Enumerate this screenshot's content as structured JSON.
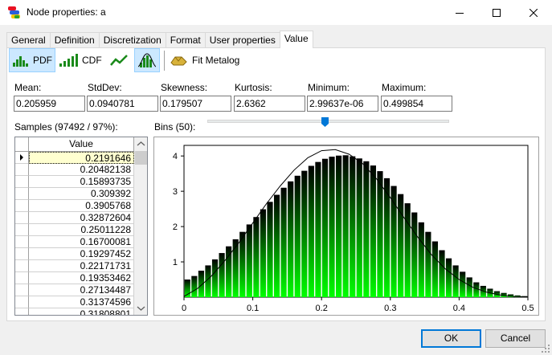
{
  "window": {
    "title": "Node properties: a",
    "colors": {
      "titlebar": "#ffffff",
      "face": "#f0f0f0"
    }
  },
  "tabs": [
    {
      "label": "General"
    },
    {
      "label": "Definition"
    },
    {
      "label": "Discretization"
    },
    {
      "label": "Format"
    },
    {
      "label": "User properties"
    },
    {
      "label": "Value",
      "active": true
    }
  ],
  "toolbar": {
    "pdf_label": "PDF",
    "cdf_label": "CDF",
    "fit_label": "Fit Metalog"
  },
  "stats": {
    "mean_label": "Mean:",
    "mean": "0.205959",
    "stddev_label": "StdDev:",
    "stddev": "0.0940781",
    "skewness_label": "Skewness:",
    "skewness": "0.179507",
    "kurtosis_label": "Kurtosis:",
    "kurtosis": "2.6362",
    "minimum_label": "Minimum:",
    "minimum": "2.99637e-06",
    "maximum_label": "Maximum:",
    "maximum": "0.499854"
  },
  "samples": {
    "label": "Samples (97492 / 97%):",
    "column": "Value",
    "values": [
      "0.2191646",
      "0.20482138",
      "0.15893735",
      "0.309392",
      "0.3905768",
      "0.32872604",
      "0.25011228",
      "0.16700081",
      "0.19297452",
      "0.22171731",
      "0.19353462",
      "0.27134487",
      "0.31374596",
      "0.31808801"
    ]
  },
  "bins": {
    "label": "Bins (50):",
    "count": 50,
    "slider_fraction": 0.48
  },
  "chart_data": {
    "type": "bar",
    "x_ticks": [
      "0",
      "0.1",
      "0.2",
      "0.3",
      "0.4",
      "0.5"
    ],
    "y_ticks": [
      "1",
      "2",
      "3",
      "4"
    ],
    "xlim": [
      0,
      0.5
    ],
    "ylim": [
      0,
      4.3
    ],
    "bin_width": 0.01,
    "values": [
      0.5,
      0.6,
      0.75,
      0.9,
      1.07,
      1.25,
      1.44,
      1.64,
      1.85,
      2.06,
      2.27,
      2.49,
      2.7,
      2.9,
      3.1,
      3.28,
      3.44,
      3.58,
      3.72,
      3.83,
      3.92,
      3.98,
      4.01,
      4.02,
      3.99,
      3.93,
      3.85,
      3.73,
      3.57,
      3.37,
      3.15,
      2.92,
      2.66,
      2.4,
      2.12,
      1.85,
      1.58,
      1.33,
      1.1,
      0.9,
      0.72,
      0.56,
      0.42,
      0.32,
      0.24,
      0.17,
      0.12,
      0.08,
      0.05,
      0.03
    ],
    "density_curve": [
      [
        0,
        0.02
      ],
      [
        0.02,
        0.25
      ],
      [
        0.04,
        0.6
      ],
      [
        0.06,
        1.05
      ],
      [
        0.08,
        1.55
      ],
      [
        0.1,
        2.1
      ],
      [
        0.12,
        2.65
      ],
      [
        0.14,
        3.15
      ],
      [
        0.16,
        3.6
      ],
      [
        0.18,
        3.95
      ],
      [
        0.2,
        4.15
      ],
      [
        0.22,
        4.18
      ],
      [
        0.24,
        4.05
      ],
      [
        0.26,
        3.78
      ],
      [
        0.28,
        3.35
      ],
      [
        0.3,
        2.82
      ],
      [
        0.32,
        2.25
      ],
      [
        0.34,
        1.7
      ],
      [
        0.36,
        1.2
      ],
      [
        0.38,
        0.8
      ],
      [
        0.4,
        0.5
      ],
      [
        0.42,
        0.28
      ],
      [
        0.44,
        0.14
      ],
      [
        0.46,
        0.06
      ],
      [
        0.48,
        0.02
      ],
      [
        0.5,
        0.01
      ]
    ],
    "grid": false,
    "colors": {
      "bar_top": "#000000",
      "bar_bottom": "#00ff00",
      "curve": "#000000"
    }
  },
  "buttons": {
    "ok": "OK",
    "cancel": "Cancel"
  }
}
